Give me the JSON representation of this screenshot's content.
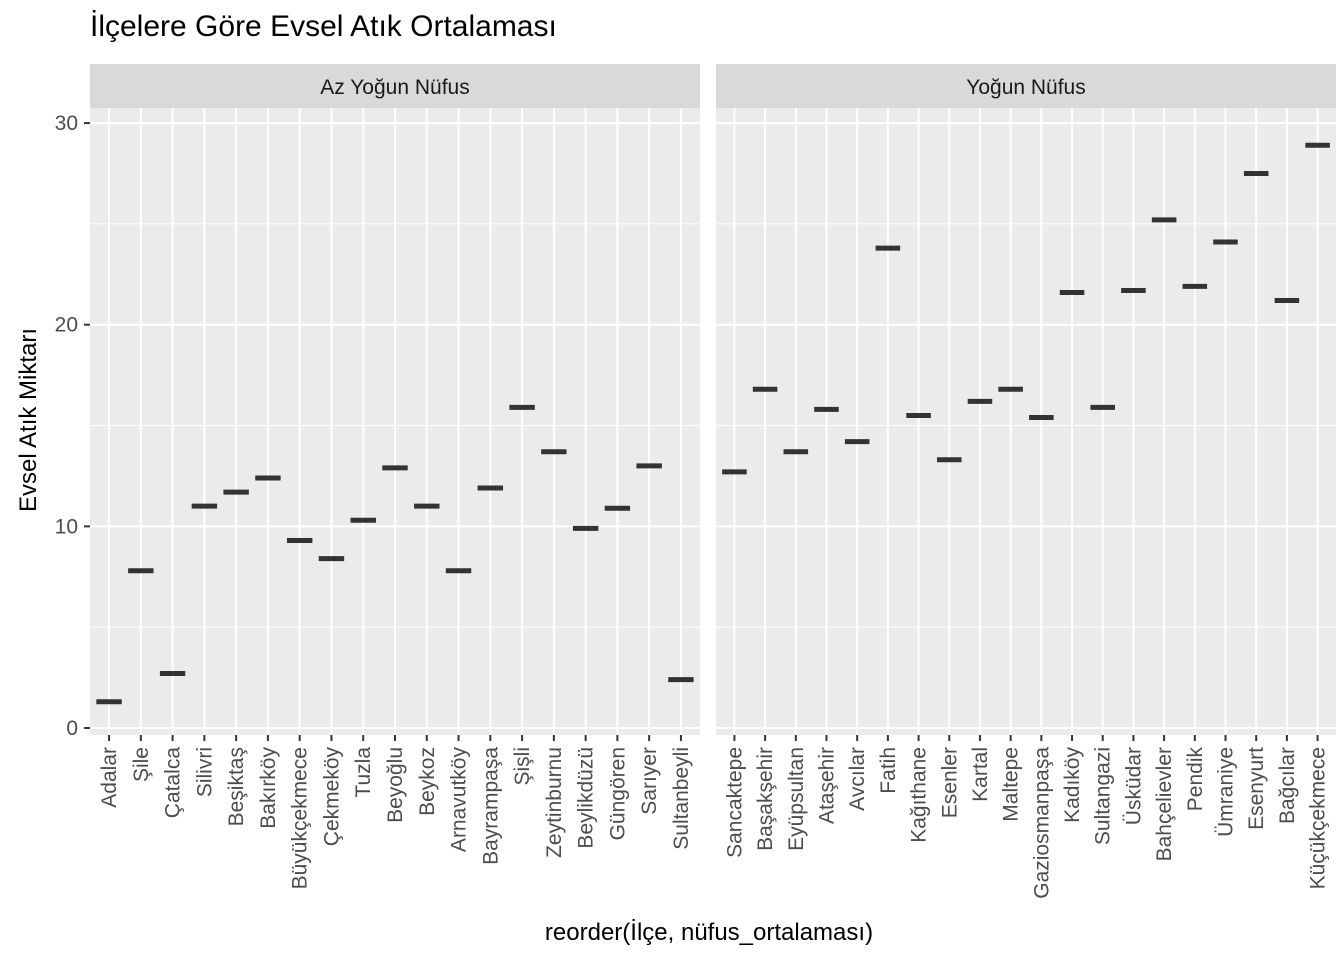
{
  "chart_data": {
    "type": "scatter",
    "title": "İlçelere Göre Evsel Atık Ortalaması",
    "xlabel": "reorder(İlçe, nüfus_ortalaması)",
    "ylabel": "Evsel Atık Miktarı",
    "ylim": [
      0,
      30
    ],
    "yticks": [
      0,
      10,
      20,
      30
    ],
    "grid": true,
    "marker": "horizontal-dash",
    "colors": {
      "panel_bg": "#EBEBEB",
      "strip_bg": "#D9D9D9",
      "grid": "#FFFFFF",
      "mark": "#333333"
    },
    "facets": [
      {
        "strip": "Az Yoğun Nüfus",
        "categories": [
          "Adalar",
          "Şile",
          "Çatalca",
          "Silivri",
          "Beşiktaş",
          "Bakırköy",
          "Büyükçekmece",
          "Çekmeköy",
          "Tuzla",
          "Beyoğlu",
          "Beykoz",
          "Arnavutköy",
          "Bayrampaşa",
          "Şişli",
          "Zeytinburnu",
          "Beylikdüzü",
          "Güngören",
          "Sarıyer",
          "Sultanbeyli"
        ],
        "values": [
          1.3,
          7.8,
          2.7,
          11.0,
          11.7,
          12.4,
          9.3,
          8.4,
          10.3,
          12.9,
          11.0,
          7.8,
          11.9,
          15.9,
          13.7,
          9.9,
          10.9,
          13.0,
          2.4
        ]
      },
      {
        "strip": "Yoğun Nüfus",
        "categories": [
          "Sancaktepe",
          "Başakşehir",
          "Eyüpsultan",
          "Ataşehir",
          "Avcılar",
          "Fatih",
          "Kağıthane",
          "Esenler",
          "Kartal",
          "Maltepe",
          "Gaziosmanpaşa",
          "Kadıköy",
          "Sultangazi",
          "Üsküdar",
          "Bahçelievler",
          "Pendik",
          "Ümraniye",
          "Esenyurt",
          "Bağcılar",
          "Küçükçekmece"
        ],
        "values": [
          12.7,
          16.8,
          13.7,
          15.8,
          14.2,
          23.8,
          15.5,
          13.3,
          16.2,
          16.8,
          15.4,
          21.6,
          15.9,
          21.7,
          25.2,
          21.9,
          24.1,
          27.5,
          21.2,
          28.9
        ]
      }
    ]
  }
}
